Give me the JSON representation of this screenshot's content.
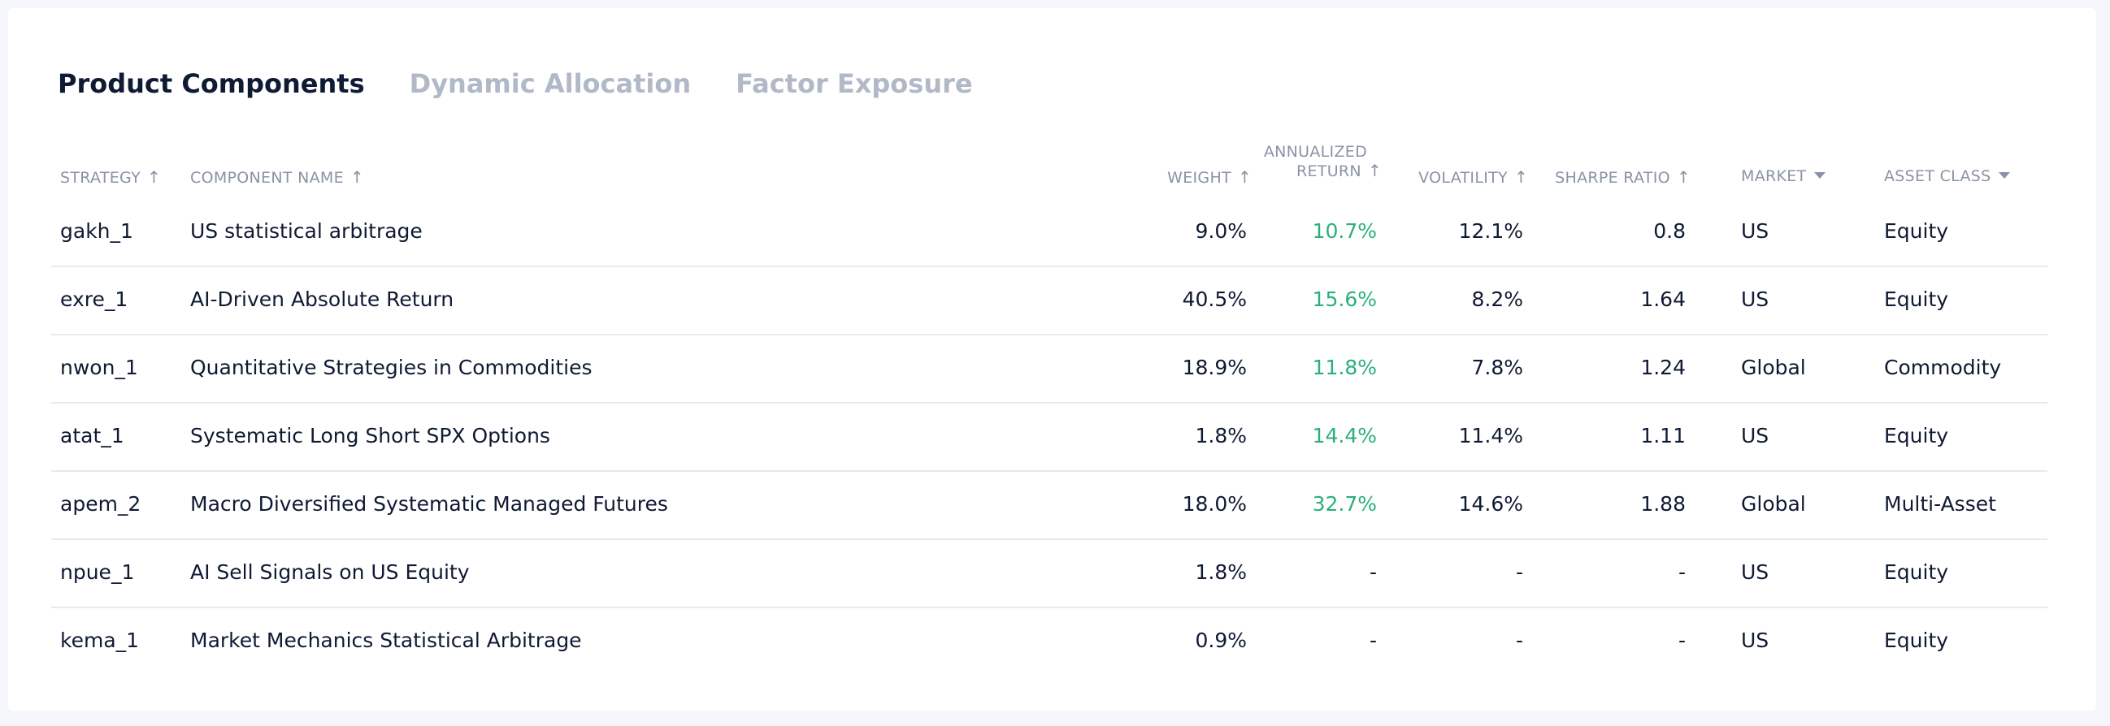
{
  "tabs": [
    {
      "label": "Product Components",
      "active": true
    },
    {
      "label": "Dynamic Allocation",
      "active": false
    },
    {
      "label": "Factor Exposure",
      "active": false
    }
  ],
  "headers": {
    "strategy": "STRATEGY",
    "component_name": "COMPONENT NAME",
    "weight": "WEIGHT",
    "return_top": "ANNUALIZED",
    "return_bottom": "RETURN",
    "volatility": "VOLATILITY",
    "sharpe": "SHARPE RATIO",
    "market": "MARKET",
    "asset_class": "ASSET CLASS"
  },
  "icons": {
    "sort_asc": "arrow-up-icon",
    "filter": "caret-down-icon"
  },
  "colors": {
    "positive_return": "#2bb07a",
    "text": "#0f1a33",
    "muted": "#8a93a5"
  },
  "rows": [
    {
      "strategy": "gakh_1",
      "name": "US statistical arbitrage",
      "weight": "9.0%",
      "return": "10.7%",
      "volatility": "12.1%",
      "sharpe": "0.8",
      "market": "US",
      "asset_class": "Equity"
    },
    {
      "strategy": "exre_1",
      "name": "AI-Driven Absolute Return",
      "weight": "40.5%",
      "return": "15.6%",
      "volatility": "8.2%",
      "sharpe": "1.64",
      "market": "US",
      "asset_class": "Equity"
    },
    {
      "strategy": "nwon_1",
      "name": "Quantitative Strategies in Commodities",
      "weight": "18.9%",
      "return": "11.8%",
      "volatility": "7.8%",
      "sharpe": "1.24",
      "market": "Global",
      "asset_class": "Commodity"
    },
    {
      "strategy": "atat_1",
      "name": "Systematic Long Short SPX Options",
      "weight": "1.8%",
      "return": "14.4%",
      "volatility": "11.4%",
      "sharpe": "1.11",
      "market": "US",
      "asset_class": "Equity"
    },
    {
      "strategy": "apem_2",
      "name": "Macro Diversified Systematic Managed Futures",
      "weight": "18.0%",
      "return": "32.7%",
      "volatility": "14.6%",
      "sharpe": "1.88",
      "market": "Global",
      "asset_class": "Multi-Asset"
    },
    {
      "strategy": "npue_1",
      "name": "AI Sell Signals on US Equity",
      "weight": "1.8%",
      "return": "-",
      "volatility": "-",
      "sharpe": "-",
      "market": "US",
      "asset_class": "Equity"
    },
    {
      "strategy": "kema_1",
      "name": "Market Mechanics Statistical Arbitrage",
      "weight": "0.9%",
      "return": "-",
      "volatility": "-",
      "sharpe": "-",
      "market": "US",
      "asset_class": "Equity"
    }
  ]
}
